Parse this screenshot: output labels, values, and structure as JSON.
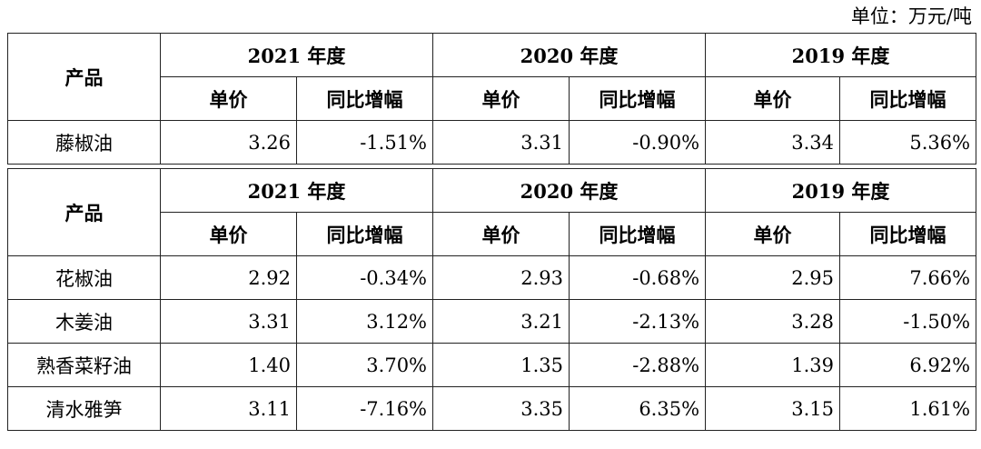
{
  "unit_note": "单位：万元/吨",
  "table1": {
    "product_header": "产品",
    "years": [
      "2021 年度",
      "2020 年度",
      "2019 年度"
    ],
    "sub_headers": [
      "单价",
      "同比增幅"
    ],
    "rows": [
      {
        "name": "藤椒油",
        "cells": [
          "3.26",
          "-1.51%",
          "3.31",
          "-0.90%",
          "3.34",
          "5.36%"
        ]
      }
    ]
  },
  "table2": {
    "product_header": "产品",
    "years": [
      "2021 年度",
      "2020 年度",
      "2019 年度"
    ],
    "sub_headers": [
      "单价",
      "同比增幅"
    ],
    "rows": [
      {
        "name": "花椒油",
        "cells": [
          "2.92",
          "-0.34%",
          "2.93",
          "-0.68%",
          "2.95",
          "7.66%"
        ]
      },
      {
        "name": "木姜油",
        "cells": [
          "3.31",
          "3.12%",
          "3.21",
          "-2.13%",
          "3.28",
          "-1.50%"
        ]
      },
      {
        "name": "熟香菜籽油",
        "cells": [
          "1.40",
          "3.70%",
          "1.35",
          "-2.88%",
          "1.39",
          "6.92%"
        ]
      },
      {
        "name": "清水雅笋",
        "cells": [
          "3.11",
          "-7.16%",
          "3.35",
          "6.35%",
          "3.15",
          "1.61%"
        ]
      }
    ]
  }
}
